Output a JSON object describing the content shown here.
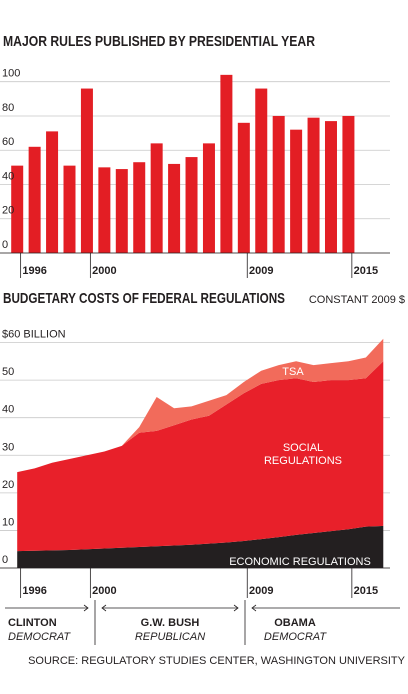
{
  "chart_data": [
    {
      "type": "bar",
      "title": "MAJOR RULES PUBLISHED BY PRESIDENTIAL YEAR",
      "x": [
        1995,
        1996,
        1997,
        1998,
        1999,
        2000,
        2001,
        2002,
        2003,
        2004,
        2005,
        2006,
        2007,
        2008,
        2009,
        2010,
        2011,
        2012,
        2013,
        2014
      ],
      "values": [
        51,
        62,
        71,
        51,
        96,
        50,
        49,
        53,
        64,
        52,
        56,
        64,
        104,
        76,
        96,
        80,
        72,
        79,
        77,
        80
      ],
      "color": "#e31e24",
      "xlim": [
        1994.3,
        2016.5
      ],
      "xticks": [
        1996,
        2000,
        2009,
        2015
      ],
      "ylim": [
        0,
        108
      ],
      "yticks": [
        0,
        20,
        40,
        60,
        80,
        100
      ],
      "grid": true
    },
    {
      "type": "stacked-area",
      "title": "BUDGETARY COSTS OF FEDERAL REGULATIONS",
      "subtitle": "CONSTANT 2009 $",
      "x": [
        1995,
        1996,
        1997,
        1998,
        1999,
        2000,
        2001,
        2002,
        2003,
        2004,
        2005,
        2006,
        2007,
        2008,
        2009,
        2010,
        2011,
        2012,
        2013,
        2014,
        2015,
        2016
      ],
      "series": [
        {
          "name": "ECONOMIC REGULATIONS",
          "color": "#231f20",
          "values": [
            4.5,
            4.6,
            4.7,
            4.8,
            5.0,
            5.2,
            5.4,
            5.6,
            5.8,
            6.0,
            6.2,
            6.5,
            6.8,
            7.2,
            7.7,
            8.2,
            8.8,
            9.3,
            9.8,
            10.3,
            11.0,
            11.2
          ]
        },
        {
          "name": "SOCIAL REGULATIONS",
          "color": "#e8202a",
          "values": [
            21,
            21.9,
            23.3,
            24.2,
            25,
            25.8,
            27.1,
            30.4,
            30.7,
            32,
            33.3,
            34,
            36.7,
            39.3,
            41.3,
            41.8,
            41.7,
            40.2,
            40.2,
            39.7,
            39.5,
            43.8
          ]
        },
        {
          "name": "TSA",
          "color": "#f26b5b",
          "values": [
            0,
            0,
            0,
            0,
            0,
            0,
            0,
            1.5,
            9,
            4.5,
            3.5,
            4,
            2.5,
            3,
            3.5,
            4,
            4.5,
            4.5,
            4.5,
            5,
            5.5,
            6
          ]
        }
      ],
      "xlim": [
        1994.3,
        2016.5
      ],
      "xticks": [
        1996,
        2000,
        2009,
        2015
      ],
      "ylim": [
        0,
        62
      ],
      "yticks": [
        0,
        10,
        20,
        30,
        40,
        50,
        {
          "value": 60,
          "label": "$60 BILLION"
        }
      ],
      "grid": true
    }
  ],
  "presidents": [
    {
      "name": "CLINTON",
      "party": "DEMOCRAT"
    },
    {
      "name": "G.W. BUSH",
      "party": "REPUBLICAN"
    },
    {
      "name": "OBAMA",
      "party": "DEMOCRAT"
    }
  ],
  "source": "SOURCE: REGULATORY STUDIES CENTER, WASHINGTON UNIVERSITY"
}
